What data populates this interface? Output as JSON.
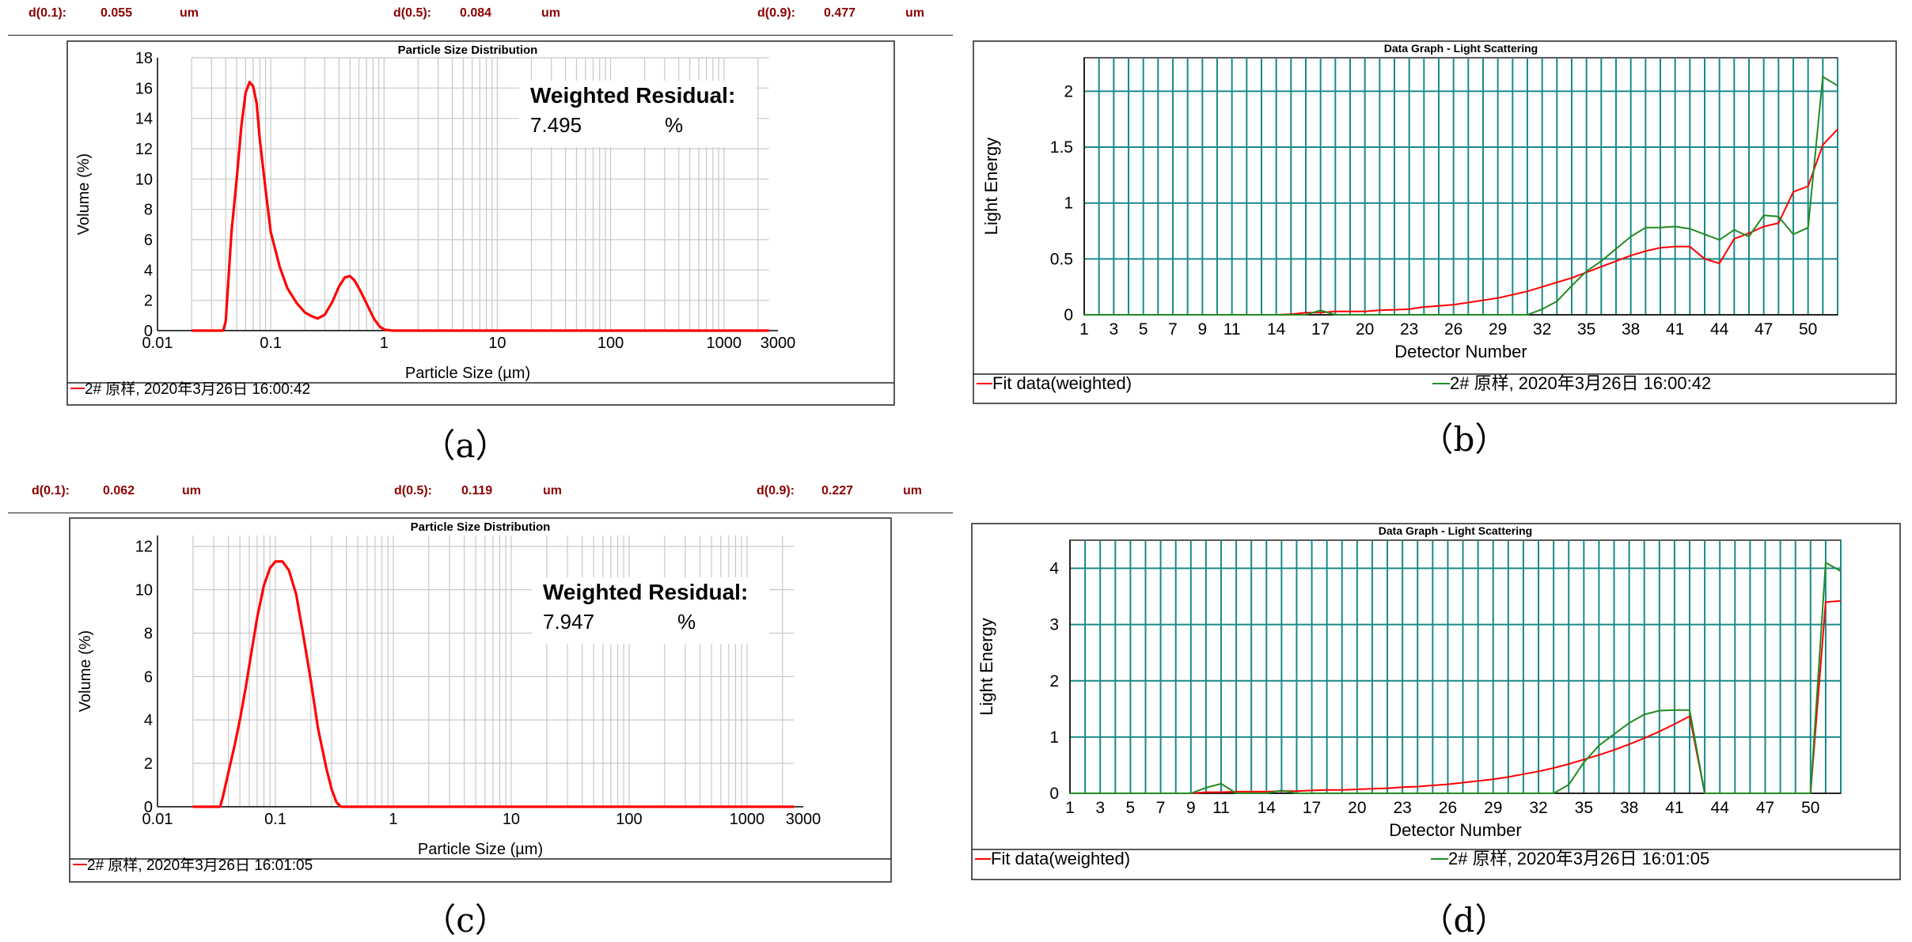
{
  "d_rows": [
    {
      "d10_label": "d(0.1):",
      "d10_value": "0.055",
      "d10_unit": "um",
      "d50_label": "d(0.5):",
      "d50_value": "0.084",
      "d50_unit": "um",
      "d90_label": "d(0.9):",
      "d90_value": "0.477",
      "d90_unit": "um"
    },
    {
      "d10_label": "d(0.1):",
      "d10_value": "0.062",
      "d10_unit": "um",
      "d50_label": "d(0.5):",
      "d50_value": "0.119",
      "d50_unit": "um",
      "d90_label": "d(0.9):",
      "d90_value": "0.227",
      "d90_unit": "um"
    }
  ],
  "captions": [
    "（a）",
    "（b）",
    "（c）",
    "（d）"
  ],
  "colors": {
    "fit_red": "#ff0000",
    "measured_green": "#228b22",
    "grid_teal": "#1a8a8a",
    "psd_grid": "#c8c8c8",
    "d_values": "#8b0000"
  },
  "chart_data": [
    {
      "type": "line",
      "panel": "a",
      "title": "Particle Size Distribution",
      "xlabel": "Particle Size (µm)",
      "ylabel": "Volume (%)",
      "xscale": "log",
      "xlim": [
        0.01,
        3000
      ],
      "xticks": [
        0.01,
        0.1,
        1,
        10,
        100,
        1000,
        3000
      ],
      "xtick_labels": [
        "0.01",
        "0.1",
        "1",
        "10",
        "100",
        "1000",
        "3000"
      ],
      "ylim": [
        0,
        18
      ],
      "yticks": [
        0,
        2,
        4,
        6,
        8,
        10,
        12,
        14,
        16,
        18
      ],
      "ytick_labels": [
        "0",
        "2",
        "4",
        "6",
        "8",
        "10",
        "12",
        "14",
        "16",
        "18"
      ],
      "residual_label": "Weighted Residual:",
      "residual_value": "7.495",
      "residual_unit": "%",
      "legend": "2# 原样, 2020年3月26日  16:00:42",
      "series": [
        {
          "color": "#ff0000",
          "points": [
            [
              0.02,
              0
            ],
            [
              0.038,
              0
            ],
            [
              0.04,
              0.6
            ],
            [
              0.042,
              3
            ],
            [
              0.045,
              6.5
            ],
            [
              0.05,
              10
            ],
            [
              0.055,
              13.5
            ],
            [
              0.06,
              15.7
            ],
            [
              0.065,
              16.4
            ],
            [
              0.07,
              16.1
            ],
            [
              0.075,
              15
            ],
            [
              0.08,
              12.6
            ],
            [
              0.09,
              9.3
            ],
            [
              0.1,
              6.5
            ],
            [
              0.12,
              4.2
            ],
            [
              0.14,
              2.8
            ],
            [
              0.17,
              1.8
            ],
            [
              0.2,
              1.2
            ],
            [
              0.23,
              0.95
            ],
            [
              0.26,
              0.8
            ],
            [
              0.3,
              1.05
            ],
            [
              0.35,
              1.9
            ],
            [
              0.4,
              2.9
            ],
            [
              0.45,
              3.5
            ],
            [
              0.5,
              3.6
            ],
            [
              0.55,
              3.3
            ],
            [
              0.62,
              2.6
            ],
            [
              0.72,
              1.6
            ],
            [
              0.82,
              0.75
            ],
            [
              0.92,
              0.25
            ],
            [
              1.02,
              0.05
            ],
            [
              1.2,
              0
            ],
            [
              2500,
              0
            ]
          ]
        }
      ]
    },
    {
      "type": "line",
      "panel": "b",
      "title": "Data Graph - Light Scattering",
      "xlabel": "Detector Number",
      "ylabel": "Light Energy",
      "xlim": [
        1,
        52
      ],
      "xtick_labels": [
        "1",
        "3",
        "5",
        "7",
        "9",
        "11",
        "14",
        "17",
        "20",
        "23",
        "26",
        "29",
        "32",
        "35",
        "38",
        "41",
        "44",
        "47",
        "50"
      ],
      "ylim": [
        0,
        2.3
      ],
      "yticks": [
        0,
        0.5,
        1,
        1.5,
        2
      ],
      "ytick_labels": [
        "0",
        "0.5",
        "1",
        "1.5",
        "2"
      ],
      "legend_fit": "Fit data(weighted)",
      "legend_measured": "2# 原样, 2020年3月26日  16:00:42",
      "series": [
        {
          "role": "fit",
          "color": "#ff0000",
          "points": [
            [
              1,
              0
            ],
            [
              14,
              0
            ],
            [
              15,
              0.005
            ],
            [
              16,
              0.02
            ],
            [
              17,
              0.02
            ],
            [
              18,
              0.03
            ],
            [
              19,
              0.03
            ],
            [
              20,
              0.03
            ],
            [
              21,
              0.04
            ],
            [
              22,
              0.045
            ],
            [
              23,
              0.05
            ],
            [
              24,
              0.07
            ],
            [
              25,
              0.08
            ],
            [
              26,
              0.09
            ],
            [
              27,
              0.11
            ],
            [
              28,
              0.13
            ],
            [
              29,
              0.15
            ],
            [
              30,
              0.18
            ],
            [
              31,
              0.21
            ],
            [
              32,
              0.25
            ],
            [
              33,
              0.29
            ],
            [
              34,
              0.33
            ],
            [
              35,
              0.38
            ],
            [
              36,
              0.43
            ],
            [
              37,
              0.48
            ],
            [
              38,
              0.53
            ],
            [
              39,
              0.57
            ],
            [
              40,
              0.6
            ],
            [
              41,
              0.61
            ],
            [
              42,
              0.61
            ],
            [
              43,
              0.5
            ],
            [
              44,
              0.46
            ],
            [
              45,
              0.68
            ],
            [
              46,
              0.73
            ],
            [
              47,
              0.79
            ],
            [
              48,
              0.82
            ],
            [
              49,
              1.1
            ],
            [
              50,
              1.15
            ],
            [
              51,
              1.52
            ],
            [
              52,
              1.66
            ]
          ]
        },
        {
          "role": "measured",
          "color": "#228b22",
          "points": [
            [
              1,
              0
            ],
            [
              14,
              0
            ],
            [
              15,
              0
            ],
            [
              16,
              0
            ],
            [
              17,
              0.04
            ],
            [
              18,
              0
            ],
            [
              19,
              0
            ],
            [
              20,
              0
            ],
            [
              21,
              0
            ],
            [
              22,
              0
            ],
            [
              23,
              0
            ],
            [
              24,
              0
            ],
            [
              25,
              0
            ],
            [
              26,
              0
            ],
            [
              27,
              0
            ],
            [
              28,
              0
            ],
            [
              29,
              0
            ],
            [
              30,
              0
            ],
            [
              31,
              0
            ],
            [
              32,
              0.05
            ],
            [
              33,
              0.12
            ],
            [
              34,
              0.26
            ],
            [
              35,
              0.39
            ],
            [
              36,
              0.48
            ],
            [
              37,
              0.59
            ],
            [
              38,
              0.7
            ],
            [
              39,
              0.78
            ],
            [
              40,
              0.78
            ],
            [
              41,
              0.79
            ],
            [
              42,
              0.77
            ],
            [
              43,
              0.72
            ],
            [
              44,
              0.67
            ],
            [
              45,
              0.76
            ],
            [
              46,
              0.7
            ],
            [
              47,
              0.89
            ],
            [
              48,
              0.88
            ],
            [
              49,
              0.72
            ],
            [
              50,
              0.78
            ],
            [
              51,
              2.13
            ],
            [
              52,
              2.05
            ]
          ]
        }
      ]
    },
    {
      "type": "line",
      "panel": "c",
      "title": "Particle Size Distribution",
      "xlabel": "Particle Size (µm)",
      "ylabel": "Volume (%)",
      "xscale": "log",
      "xlim": [
        0.01,
        3000
      ],
      "xticks": [
        0.01,
        0.1,
        1,
        10,
        100,
        1000,
        3000
      ],
      "xtick_labels": [
        "0.01",
        "0.1",
        "1",
        "10",
        "100",
        "1000",
        "3000"
      ],
      "ylim": [
        0,
        12.5
      ],
      "yticks": [
        0,
        2,
        4,
        6,
        8,
        10,
        12
      ],
      "ytick_labels": [
        "0",
        "2",
        "4",
        "6",
        "8",
        "10",
        "12"
      ],
      "residual_label": "Weighted Residual:",
      "residual_value": "7.947",
      "residual_unit": "%",
      "legend": "2# 原样, 2020年3月26日  16:01:05",
      "series": [
        {
          "color": "#ff0000",
          "points": [
            [
              0.02,
              0
            ],
            [
              0.034,
              0
            ],
            [
              0.036,
              0.5
            ],
            [
              0.04,
              1.6
            ],
            [
              0.045,
              2.8
            ],
            [
              0.05,
              4
            ],
            [
              0.056,
              5.5
            ],
            [
              0.063,
              7.2
            ],
            [
              0.07,
              8.7
            ],
            [
              0.08,
              10.2
            ],
            [
              0.09,
              11
            ],
            [
              0.1,
              11.3
            ],
            [
              0.115,
              11.3
            ],
            [
              0.13,
              10.9
            ],
            [
              0.15,
              9.8
            ],
            [
              0.17,
              8.1
            ],
            [
              0.2,
              5.8
            ],
            [
              0.23,
              3.6
            ],
            [
              0.27,
              1.8
            ],
            [
              0.3,
              0.8
            ],
            [
              0.33,
              0.2
            ],
            [
              0.36,
              0
            ],
            [
              2500,
              0
            ]
          ]
        }
      ]
    },
    {
      "type": "line",
      "panel": "d",
      "title": "Data Graph - Light Scattering",
      "xlabel": "Detector Number",
      "ylabel": "Light Energy",
      "xlim": [
        1,
        52
      ],
      "xtick_labels": [
        "1",
        "3",
        "5",
        "7",
        "9",
        "11",
        "14",
        "17",
        "20",
        "23",
        "26",
        "29",
        "32",
        "35",
        "38",
        "41",
        "44",
        "47",
        "50"
      ],
      "ylim": [
        0,
        4.5
      ],
      "yticks": [
        0,
        1,
        2,
        3,
        4
      ],
      "ytick_labels": [
        "0",
        "1",
        "2",
        "3",
        "4"
      ],
      "legend_fit": "Fit data(weighted)",
      "legend_measured": "2# 原样, 2020年3月26日  16:01:05",
      "series": [
        {
          "role": "fit",
          "color": "#ff0000",
          "points": [
            [
              1,
              0
            ],
            [
              9,
              0
            ],
            [
              10,
              0.02
            ],
            [
              11,
              0.02
            ],
            [
              12,
              0.03
            ],
            [
              13,
              0.03
            ],
            [
              14,
              0.03
            ],
            [
              15,
              0.04
            ],
            [
              16,
              0.04
            ],
            [
              17,
              0.05
            ],
            [
              18,
              0.06
            ],
            [
              19,
              0.06
            ],
            [
              20,
              0.07
            ],
            [
              21,
              0.08
            ],
            [
              22,
              0.09
            ],
            [
              23,
              0.11
            ],
            [
              24,
              0.12
            ],
            [
              25,
              0.14
            ],
            [
              26,
              0.16
            ],
            [
              27,
              0.19
            ],
            [
              28,
              0.22
            ],
            [
              29,
              0.25
            ],
            [
              30,
              0.29
            ],
            [
              31,
              0.34
            ],
            [
              32,
              0.39
            ],
            [
              33,
              0.45
            ],
            [
              34,
              0.52
            ],
            [
              35,
              0.6
            ],
            [
              36,
              0.68
            ],
            [
              37,
              0.77
            ],
            [
              38,
              0.87
            ],
            [
              39,
              0.98
            ],
            [
              40,
              1.1
            ],
            [
              41,
              1.23
            ],
            [
              42,
              1.37
            ],
            [
              43,
              0
            ],
            [
              44,
              0
            ],
            [
              45,
              0
            ],
            [
              46,
              0
            ],
            [
              47,
              0
            ],
            [
              48,
              0
            ],
            [
              49,
              0
            ],
            [
              50,
              0
            ],
            [
              51,
              3.4
            ],
            [
              52,
              3.42
            ]
          ]
        },
        {
          "role": "measured",
          "color": "#228b22",
          "points": [
            [
              1,
              0
            ],
            [
              9,
              0
            ],
            [
              10,
              0.1
            ],
            [
              11,
              0.17
            ],
            [
              12,
              0
            ],
            [
              13,
              0
            ],
            [
              14,
              0
            ],
            [
              15,
              0.05
            ],
            [
              16,
              0
            ],
            [
              17,
              0
            ],
            [
              18,
              0
            ],
            [
              19,
              0
            ],
            [
              20,
              0
            ],
            [
              21,
              0
            ],
            [
              22,
              0
            ],
            [
              23,
              0
            ],
            [
              24,
              0
            ],
            [
              25,
              0
            ],
            [
              26,
              0
            ],
            [
              27,
              0
            ],
            [
              28,
              0
            ],
            [
              29,
              0
            ],
            [
              30,
              0
            ],
            [
              31,
              0
            ],
            [
              32,
              0
            ],
            [
              33,
              0
            ],
            [
              34,
              0.15
            ],
            [
              35,
              0.55
            ],
            [
              36,
              0.85
            ],
            [
              37,
              1.05
            ],
            [
              38,
              1.25
            ],
            [
              39,
              1.4
            ],
            [
              40,
              1.47
            ],
            [
              41,
              1.48
            ],
            [
              42,
              1.48
            ],
            [
              43,
              0
            ],
            [
              44,
              0
            ],
            [
              45,
              0
            ],
            [
              46,
              0
            ],
            [
              47,
              0
            ],
            [
              48,
              0
            ],
            [
              49,
              0
            ],
            [
              50,
              0
            ],
            [
              51,
              4.1
            ],
            [
              52,
              3.95
            ]
          ]
        }
      ]
    }
  ]
}
